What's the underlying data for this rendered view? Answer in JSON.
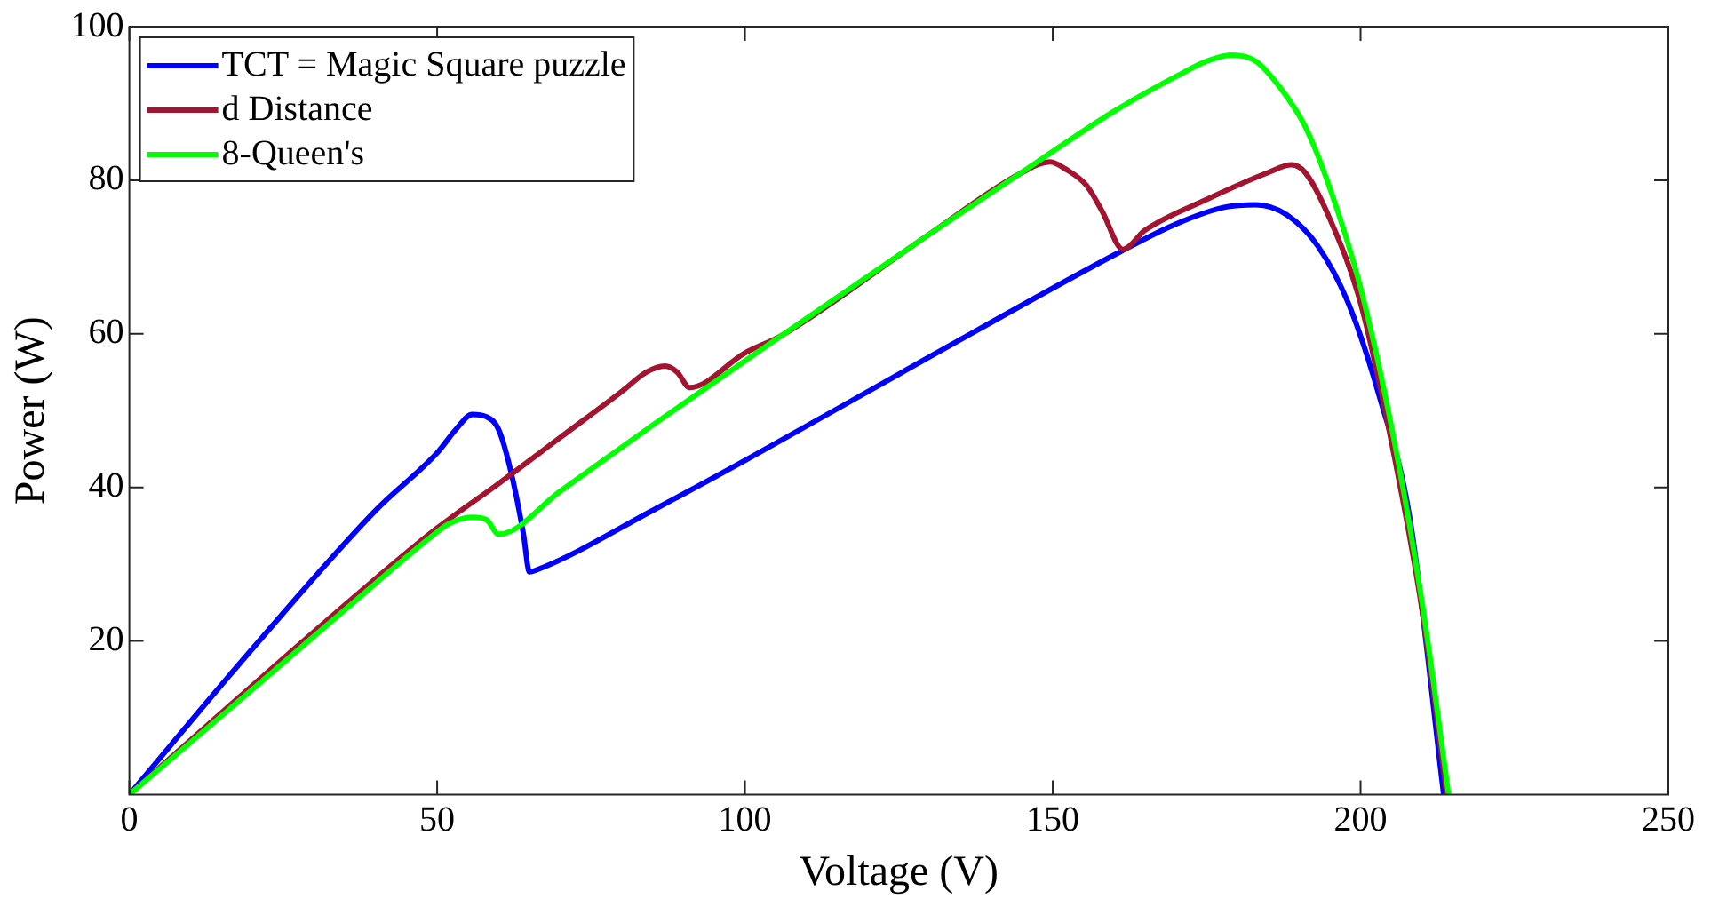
{
  "chart_data": {
    "type": "line",
    "xlabel": "Voltage (V)",
    "ylabel": "Power (W)",
    "xlim": [
      0,
      250
    ],
    "xticks": [
      0,
      50,
      100,
      150,
      200,
      250
    ],
    "ylim": [
      0,
      100
    ],
    "yticks": [
      20,
      40,
      60,
      80,
      100
    ],
    "grid": false,
    "legend": "top left",
    "marker": "none",
    "line_style": "solid",
    "series": [
      {
        "name": "TCT = Magic Square puzzle",
        "color": "#0000ff",
        "x": [
          0,
          20,
          40,
          50,
          53,
          55.7,
          58,
          60,
          62,
          64,
          65,
          66,
          85.7,
          100,
          130,
          161,
          170,
          178,
          183,
          188,
          193,
          198,
          203,
          208,
          213.5
        ],
        "values": [
          0,
          19,
          37,
          44.5,
          47.5,
          49.5,
          49.2,
          47.5,
          42,
          34,
          29,
          29.2,
          37.3,
          43.5,
          57,
          70.7,
          74.3,
          76.5,
          76.8,
          75.5,
          71.5,
          64,
          52,
          36,
          0
        ]
      },
      {
        "name": "d Distance",
        "color": "#a2142f",
        "x": [
          0,
          20,
          40,
          50,
          60,
          70,
          80,
          84,
          87,
          89,
          91,
          100,
          106,
          130,
          145,
          149.6,
          152,
          155.5,
          158,
          161.4,
          165,
          175,
          185,
          188.8,
          191,
          195,
          200,
          205,
          210,
          214
        ],
        "values": [
          0,
          14.2,
          28.1,
          34.7,
          40.5,
          46.5,
          52.5,
          55,
          55.8,
          55,
          53,
          57.5,
          59.8,
          73,
          81,
          82.4,
          81.5,
          79.3,
          76,
          71,
          73.5,
          77.5,
          81,
          82,
          81,
          75,
          64,
          46,
          24,
          0
        ]
      },
      {
        "name": "8-Queen's",
        "color": "#00ff00",
        "x": [
          0,
          20,
          40,
          50,
          52,
          55.7,
          58,
          60,
          70,
          85.7,
          106,
          130,
          147.5,
          160,
          170,
          175,
          179,
          183,
          187,
          191,
          195,
          200,
          205,
          210,
          214.3
        ],
        "values": [
          0,
          13.7,
          27.5,
          34.2,
          35.3,
          36.1,
          35.8,
          33.9,
          39.5,
          48.5,
          59.8,
          73,
          82.4,
          89,
          93.5,
          95.5,
          96.3,
          95.5,
          92,
          87,
          79,
          66,
          48,
          25,
          0
        ]
      }
    ]
  }
}
